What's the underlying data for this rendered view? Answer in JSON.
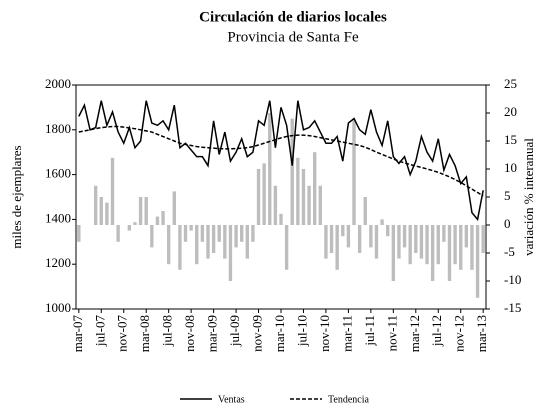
{
  "chart_data": {
    "type": "combo",
    "title": "Circulación de diarios locales",
    "subtitle": "Provincia de Santa Fe",
    "y_label": "miles de ejemplares",
    "y2_label": "variación % interanual",
    "categories": [
      "mar-07",
      null,
      null,
      null,
      "jul-07",
      null,
      null,
      null,
      "nov-07",
      null,
      null,
      null,
      "mar-08",
      null,
      null,
      null,
      "jul-08",
      null,
      null,
      null,
      "nov-08",
      null,
      null,
      null,
      "mar-09",
      null,
      null,
      null,
      "jul-09",
      null,
      null,
      null,
      "nov-09",
      null,
      null,
      null,
      "mar-10",
      null,
      null,
      null,
      "jul-10",
      null,
      null,
      null,
      "nov-10",
      null,
      null,
      null,
      "mar-11",
      null,
      null,
      null,
      "jul-11",
      null,
      null,
      null,
      "nov-11",
      null,
      null,
      null,
      "mar-12",
      null,
      null,
      null,
      "jul-12",
      null,
      null,
      null,
      "nov-12",
      null,
      null,
      null,
      "mar-13"
    ],
    "ylim": [
      1000,
      2000
    ],
    "yticks": [
      1000,
      1200,
      1400,
      1600,
      1800,
      2000
    ],
    "y2lim": [
      -15,
      25
    ],
    "y2ticks": [
      -15,
      -10,
      -5,
      0,
      5,
      10,
      15,
      20,
      25
    ],
    "series": [
      {
        "type": "bar",
        "axis": "y2",
        "color": "#bdbdbd",
        "values": [
          -3,
          0,
          0,
          7,
          5,
          4,
          12,
          -3,
          0,
          -1,
          0.5,
          5,
          5,
          -4,
          1.5,
          2.5,
          -7,
          6,
          -8,
          -3,
          -1,
          -7,
          -3,
          -6,
          -5,
          -3,
          -6,
          -10,
          -4,
          -3,
          -6,
          -3,
          10,
          11,
          20,
          7,
          2,
          -8,
          19,
          12,
          10,
          7,
          13,
          7,
          -6,
          -5,
          -8,
          -2,
          -4,
          19,
          -5,
          5,
          -4,
          -6,
          1,
          -2,
          -10,
          -6,
          -4,
          -7,
          -5,
          -6,
          -7,
          -10,
          -7,
          -3,
          -10,
          -7,
          -8,
          -4,
          -8,
          -13,
          -5
        ]
      },
      {
        "type": "line",
        "name": "Ventas",
        "color": "#000000",
        "dashed": false,
        "values": [
          1860,
          1910,
          1800,
          1810,
          1930,
          1820,
          1880,
          1790,
          1740,
          1810,
          1720,
          1750,
          1930,
          1830,
          1820,
          1840,
          1800,
          1910,
          1720,
          1740,
          1710,
          1680,
          1680,
          1640,
          1840,
          1690,
          1790,
          1660,
          1700,
          1760,
          1680,
          1700,
          1840,
          1820,
          1930,
          1720,
          1900,
          1820,
          1640,
          1930,
          1800,
          1810,
          1840,
          1790,
          1740,
          1740,
          1770,
          1660,
          1830,
          1850,
          1800,
          1780,
          1890,
          1790,
          1730,
          1840,
          1680,
          1650,
          1680,
          1600,
          1660,
          1770,
          1700,
          1660,
          1760,
          1620,
          1690,
          1640,
          1560,
          1590,
          1430,
          1400,
          1530
        ]
      },
      {
        "type": "line",
        "name": "Tendencia",
        "color": "#000000",
        "dashed": true,
        "values": [
          1790,
          1795,
          1800,
          1805,
          1810,
          1812,
          1815,
          1815,
          1812,
          1808,
          1805,
          1800,
          1795,
          1790,
          1780,
          1770,
          1760,
          1750,
          1740,
          1735,
          1730,
          1725,
          1722,
          1720,
          1718,
          1716,
          1715,
          1715,
          1716,
          1718,
          1720,
          1725,
          1732,
          1740,
          1748,
          1756,
          1764,
          1770,
          1774,
          1776,
          1776,
          1774,
          1770,
          1765,
          1760,
          1755,
          1750,
          1745,
          1740,
          1735,
          1730,
          1722,
          1712,
          1700,
          1690,
          1680,
          1670,
          1660,
          1652,
          1645,
          1638,
          1632,
          1625,
          1618,
          1610,
          1600,
          1590,
          1578,
          1565,
          1550,
          1535,
          1520,
          1505
        ]
      }
    ]
  }
}
